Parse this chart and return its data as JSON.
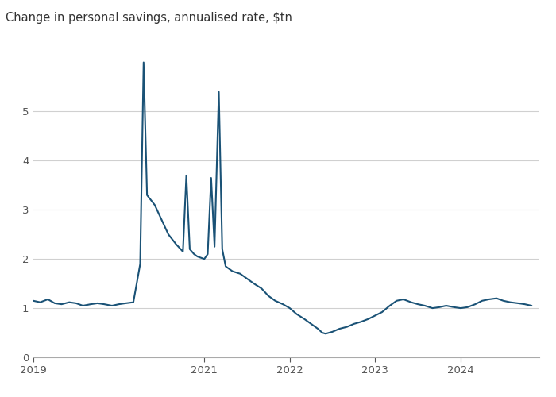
{
  "title": "Change in personal savings, annualised rate, $tn",
  "line_color": "#1a5276",
  "background_color": "#ffffff",
  "ylim": [
    0,
    6.3
  ],
  "yticks": [
    0,
    1,
    2,
    3,
    4,
    5
  ],
  "grid_color": "#d0d0d0",
  "x_tick_positions": [
    2019,
    2021,
    2022,
    2023,
    2024
  ],
  "x_labels": [
    "2019",
    "2021",
    "2022",
    "2023",
    "2024"
  ],
  "xlim": [
    2019.0,
    2024.92
  ],
  "data": [
    [
      2019.0,
      1.15
    ],
    [
      2019.08,
      1.12
    ],
    [
      2019.17,
      1.18
    ],
    [
      2019.25,
      1.1
    ],
    [
      2019.33,
      1.08
    ],
    [
      2019.42,
      1.12
    ],
    [
      2019.5,
      1.1
    ],
    [
      2019.58,
      1.05
    ],
    [
      2019.67,
      1.08
    ],
    [
      2019.75,
      1.1
    ],
    [
      2019.83,
      1.08
    ],
    [
      2019.92,
      1.05
    ],
    [
      2020.0,
      1.08
    ],
    [
      2020.08,
      1.1
    ],
    [
      2020.17,
      1.12
    ],
    [
      2020.25,
      1.9
    ],
    [
      2020.29,
      6.0
    ],
    [
      2020.33,
      3.3
    ],
    [
      2020.42,
      3.1
    ],
    [
      2020.5,
      2.8
    ],
    [
      2020.58,
      2.5
    ],
    [
      2020.67,
      2.3
    ],
    [
      2020.75,
      2.15
    ],
    [
      2020.79,
      3.7
    ],
    [
      2020.83,
      2.2
    ],
    [
      2020.88,
      2.1
    ],
    [
      2020.92,
      2.05
    ],
    [
      2021.0,
      2.0
    ],
    [
      2021.04,
      2.1
    ],
    [
      2021.08,
      3.65
    ],
    [
      2021.12,
      2.25
    ],
    [
      2021.17,
      5.4
    ],
    [
      2021.21,
      2.2
    ],
    [
      2021.25,
      1.85
    ],
    [
      2021.33,
      1.75
    ],
    [
      2021.42,
      1.7
    ],
    [
      2021.5,
      1.6
    ],
    [
      2021.58,
      1.5
    ],
    [
      2021.67,
      1.4
    ],
    [
      2021.75,
      1.25
    ],
    [
      2021.83,
      1.15
    ],
    [
      2021.92,
      1.08
    ],
    [
      2022.0,
      1.0
    ],
    [
      2022.08,
      0.88
    ],
    [
      2022.17,
      0.78
    ],
    [
      2022.25,
      0.68
    ],
    [
      2022.33,
      0.58
    ],
    [
      2022.38,
      0.5
    ],
    [
      2022.42,
      0.48
    ],
    [
      2022.5,
      0.52
    ],
    [
      2022.58,
      0.58
    ],
    [
      2022.67,
      0.62
    ],
    [
      2022.75,
      0.68
    ],
    [
      2022.83,
      0.72
    ],
    [
      2022.92,
      0.78
    ],
    [
      2023.0,
      0.85
    ],
    [
      2023.08,
      0.92
    ],
    [
      2023.17,
      1.05
    ],
    [
      2023.25,
      1.15
    ],
    [
      2023.33,
      1.18
    ],
    [
      2023.42,
      1.12
    ],
    [
      2023.5,
      1.08
    ],
    [
      2023.58,
      1.05
    ],
    [
      2023.67,
      1.0
    ],
    [
      2023.75,
      1.02
    ],
    [
      2023.83,
      1.05
    ],
    [
      2023.92,
      1.02
    ],
    [
      2024.0,
      1.0
    ],
    [
      2024.08,
      1.02
    ],
    [
      2024.17,
      1.08
    ],
    [
      2024.25,
      1.15
    ],
    [
      2024.33,
      1.18
    ],
    [
      2024.42,
      1.2
    ],
    [
      2024.5,
      1.15
    ],
    [
      2024.58,
      1.12
    ],
    [
      2024.67,
      1.1
    ],
    [
      2024.75,
      1.08
    ],
    [
      2024.83,
      1.05
    ]
  ]
}
